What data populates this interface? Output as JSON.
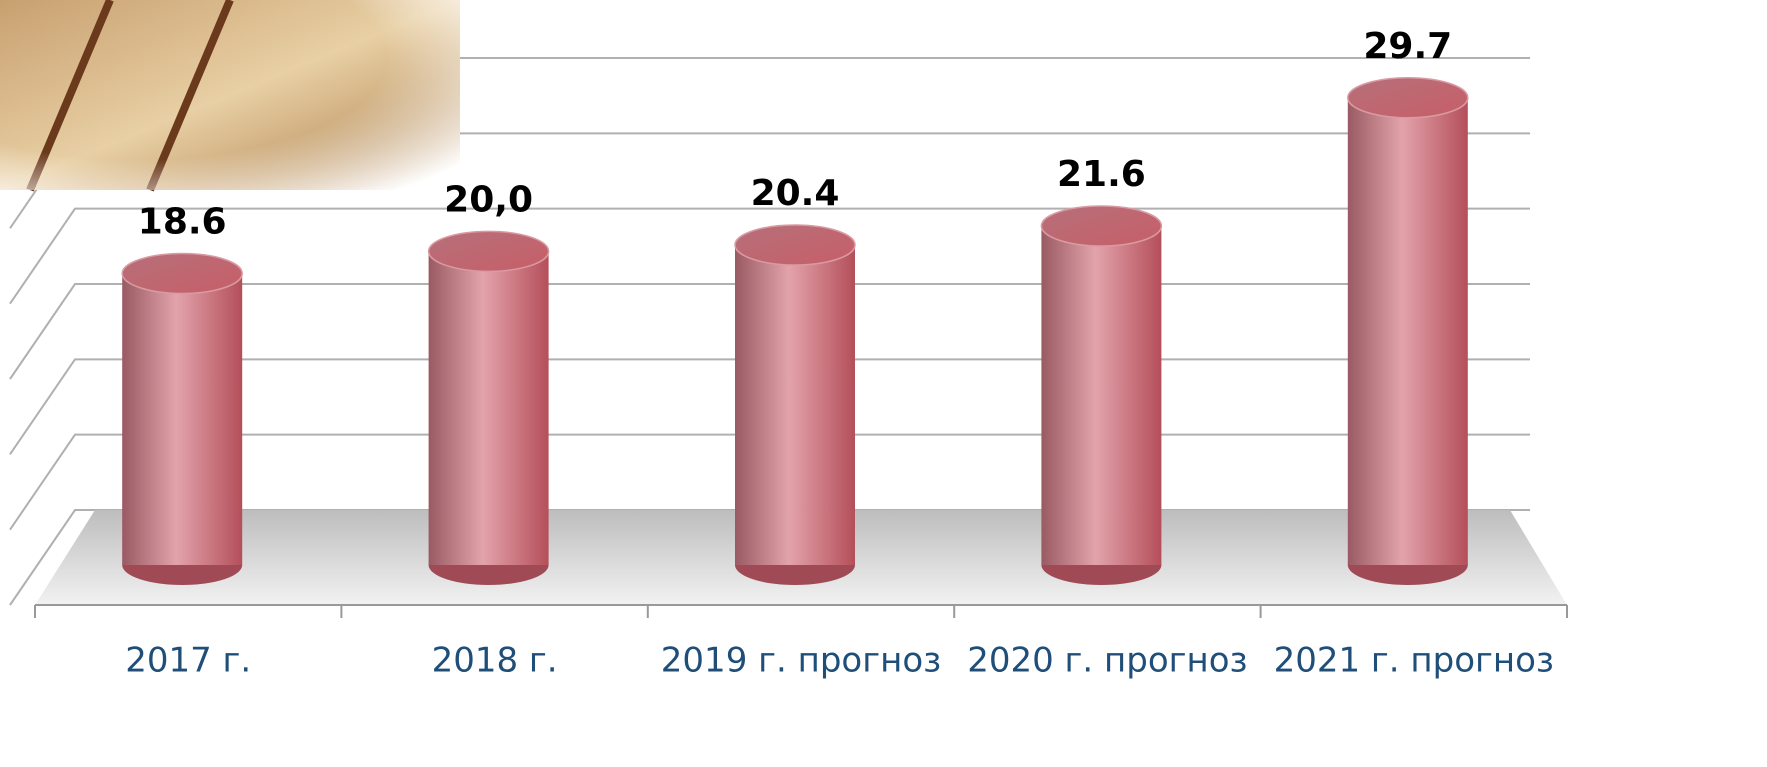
{
  "chart_data": {
    "type": "bar",
    "categories": [
      "2017 г.",
      "2018 г.",
      "2019 г. прогноз",
      "2020 г. прогноз",
      "2021 г. прогноз"
    ],
    "values": [
      18.6,
      20.0,
      20.4,
      21.6,
      29.7
    ],
    "value_labels": [
      "18.6",
      "20,0",
      "20.4",
      "21.6",
      "29.7"
    ],
    "color": "#c46f78",
    "ylim": [
      0,
      30
    ],
    "yticks": [
      0,
      5,
      10,
      15,
      20,
      25,
      30
    ],
    "grid": true
  }
}
